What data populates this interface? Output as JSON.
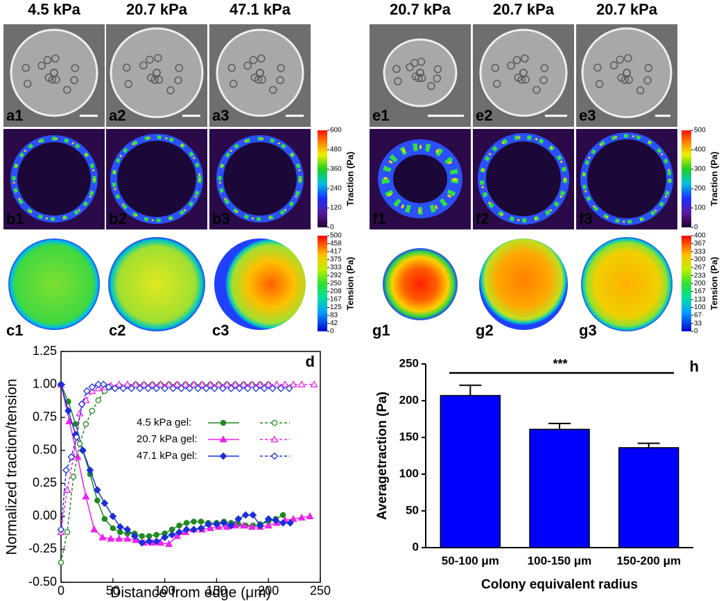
{
  "figure": {
    "headers_left": [
      "4.5 kPa",
      "20.7 kPa",
      "47.1 kPa"
    ],
    "headers_right": [
      "20.7 kPa",
      "20.7 kPa",
      "20.7 kPa"
    ],
    "panel_labels": {
      "a": [
        "a1",
        "a2",
        "a3"
      ],
      "b": [
        "b1",
        "b2",
        "b3"
      ],
      "c": [
        "c1",
        "c2",
        "c3"
      ],
      "e": [
        "e1",
        "e2",
        "e3"
      ],
      "f": [
        "f1",
        "f2",
        "f3"
      ],
      "g": [
        "g1",
        "g2",
        "g3"
      ]
    },
    "colorbars": [
      {
        "title": "Traction (Pa)",
        "lim": [
          0,
          600
        ],
        "ticks": [
          0,
          120,
          240,
          360,
          480,
          600
        ]
      },
      {
        "title": "Tension (Pa)",
        "lim": [
          0,
          500
        ],
        "ticks": [
          0,
          42,
          83,
          125,
          167,
          208,
          250,
          292,
          333,
          375,
          417,
          458,
          500
        ]
      },
      {
        "title": "Traction (Pa)",
        "lim": [
          0,
          500
        ],
        "ticks": [
          0,
          100,
          200,
          300,
          400,
          500
        ]
      },
      {
        "title": "Tension (Pa)",
        "lim": [
          0,
          400
        ],
        "ticks": [
          0,
          33,
          67,
          100,
          133,
          167,
          200,
          233,
          267,
          300,
          333,
          367,
          400
        ]
      }
    ]
  },
  "chart_data": [
    {
      "type": "line",
      "panel_label": "d",
      "xlabel": "Distance from edge (μm)",
      "ylabel": "Normalized traction/tension",
      "xlim": [
        0,
        250
      ],
      "xticks": [
        0,
        50,
        100,
        150,
        200,
        250
      ],
      "ylim": [
        -0.5,
        1.25
      ],
      "yticks": [
        {
          "value": -0.5,
          "label": "-0.50"
        },
        -0.25,
        {
          "value": 0,
          "label": "0.00"
        },
        0.25,
        {
          "value": 0.5,
          "label": "0.50"
        },
        0.75,
        {
          "value": 1,
          "label": "1.00"
        },
        1.25
      ],
      "series": [
        {
          "name": "4.5  kPa gel:",
          "color": "#1f8a1f",
          "marker": "circle",
          "filled": true,
          "dashed": false,
          "x": [
            0,
            7,
            14,
            21,
            28,
            35,
            42,
            50,
            57,
            64,
            71,
            78,
            85,
            92,
            100,
            107,
            114,
            121,
            128,
            135,
            142,
            150,
            157,
            164,
            171,
            178,
            185,
            192,
            200,
            207,
            214
          ],
          "values": [
            1.0,
            0.87,
            0.7,
            0.5,
            0.32,
            0.12,
            -0.02,
            -0.09,
            -0.12,
            -0.13,
            -0.13,
            -0.15,
            -0.15,
            -0.14,
            -0.13,
            -0.1,
            -0.07,
            -0.05,
            -0.04,
            -0.04,
            -0.05,
            -0.05,
            -0.04,
            -0.05,
            -0.06,
            -0.07,
            -0.07,
            -0.06,
            -0.04,
            -0.02,
            0.01
          ]
        },
        {
          "name": "20.7 kPa gel:",
          "color": "#ee22ee",
          "marker": "triangle",
          "filled": true,
          "dashed": false,
          "x": [
            0,
            8,
            16,
            24,
            32,
            40,
            48,
            56,
            64,
            72,
            80,
            88,
            96,
            104,
            112,
            120,
            128,
            136,
            144,
            152,
            160,
            168,
            176,
            184,
            192,
            200,
            208,
            216,
            224,
            232,
            240
          ],
          "values": [
            1.0,
            0.72,
            0.45,
            0.15,
            -0.1,
            -0.16,
            -0.17,
            -0.17,
            -0.17,
            -0.18,
            -0.2,
            -0.2,
            -0.2,
            -0.21,
            -0.15,
            -0.12,
            -0.1,
            -0.1,
            -0.09,
            -0.08,
            -0.08,
            -0.07,
            -0.07,
            -0.08,
            -0.08,
            -0.07,
            -0.05,
            -0.03,
            -0.02,
            -0.01,
            0.0
          ]
        },
        {
          "name": "47.1 kPa gel:",
          "color": "#1a2fd6",
          "marker": "diamond",
          "filled": true,
          "dashed": false,
          "x": [
            0,
            7,
            14,
            21,
            28,
            35,
            42,
            50,
            57,
            64,
            71,
            78,
            85,
            92,
            100,
            107,
            114,
            121,
            128,
            135,
            142,
            150,
            157,
            164,
            171,
            178,
            185,
            192,
            200,
            207,
            214,
            221
          ],
          "values": [
            1.0,
            0.8,
            0.62,
            0.5,
            0.35,
            0.2,
            0.1,
            0.0,
            -0.08,
            -0.1,
            -0.15,
            -0.2,
            -0.19,
            -0.19,
            -0.16,
            -0.14,
            -0.12,
            -0.1,
            -0.1,
            -0.09,
            -0.06,
            -0.06,
            -0.05,
            -0.07,
            -0.02,
            0.01,
            0.01,
            -0.07,
            -0.02,
            -0.03,
            -0.05,
            -0.05
          ]
        },
        {
          "color": "#1f8a1f",
          "marker": "circle",
          "filled": false,
          "dashed": true,
          "x": [
            0,
            6,
            12,
            18,
            24,
            30,
            36,
            42,
            48,
            56,
            64,
            72,
            80,
            88,
            96,
            104,
            112,
            120,
            128,
            136,
            144,
            152,
            160,
            168,
            176,
            184,
            192,
            200
          ],
          "values": [
            -0.35,
            -0.12,
            0.3,
            0.55,
            0.7,
            0.8,
            0.88,
            0.95,
            0.98,
            0.99,
            0.99,
            1.0,
            1.0,
            1.0,
            1.0,
            1.0,
            1.0,
            1.0,
            1.0,
            1.0,
            1.0,
            1.0,
            1.0,
            1.0,
            1.0,
            1.0,
            1.0,
            1.0
          ]
        },
        {
          "color": "#ee22ee",
          "marker": "triangle",
          "filled": false,
          "dashed": true,
          "x": [
            0,
            6,
            12,
            18,
            24,
            30,
            36,
            42,
            48,
            56,
            64,
            72,
            80,
            88,
            96,
            104,
            112,
            120,
            128,
            136,
            144,
            152,
            160,
            168,
            176,
            184,
            192,
            200,
            208,
            216,
            224,
            232,
            244
          ],
          "values": [
            -0.12,
            0.2,
            0.45,
            0.78,
            0.88,
            0.95,
            0.97,
            0.98,
            0.99,
            1.0,
            1.0,
            1.0,
            1.0,
            1.0,
            1.0,
            1.0,
            1.0,
            1.0,
            1.0,
            1.0,
            1.0,
            1.0,
            1.0,
            1.0,
            1.0,
            1.0,
            1.0,
            1.0,
            1.0,
            1.0,
            1.0,
            1.0,
            1.0
          ]
        },
        {
          "color": "#1a2fd6",
          "marker": "diamond",
          "filled": false,
          "dashed": true,
          "x": [
            0,
            5,
            10,
            15,
            20,
            25,
            30,
            36,
            41,
            46,
            52,
            60,
            68,
            76,
            84,
            92,
            100,
            108,
            116,
            124,
            132,
            140,
            148,
            156,
            164,
            172,
            180,
            188,
            196,
            204,
            212,
            220
          ],
          "values": [
            -0.1,
            0.35,
            0.45,
            0.6,
            0.85,
            0.95,
            0.98,
            1.0,
            1.0,
            0.98,
            0.97,
            0.97,
            0.97,
            0.97,
            0.97,
            0.97,
            0.97,
            0.97,
            0.97,
            0.97,
            0.97,
            0.97,
            0.97,
            0.97,
            0.97,
            0.97,
            0.97,
            0.97,
            0.97,
            0.97,
            0.97,
            0.97
          ]
        }
      ]
    },
    {
      "type": "bar",
      "panel_label": "h",
      "annotation": "***",
      "xlabel": "Colony equivalent radius",
      "ylabel": "Averagetraction (Pa)",
      "categories": [
        "50-100 μm",
        "100-150 μm",
        "150-200 μm"
      ],
      "values": [
        207,
        161,
        136
      ],
      "errors": [
        14,
        8,
        6
      ],
      "color": "#0000ff",
      "ylim": [
        0,
        250
      ],
      "yticks": [
        0,
        50,
        100,
        150,
        200,
        250
      ]
    }
  ]
}
